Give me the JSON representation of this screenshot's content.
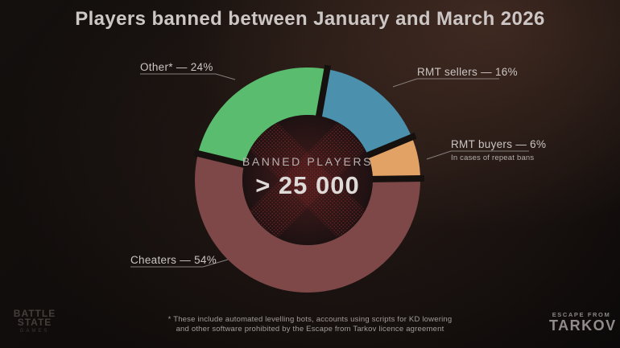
{
  "title": "Players banned between January and March 2026",
  "chart_data": {
    "type": "pie",
    "variant": "donut",
    "title": "Players banned between January and March 2026",
    "start_angle_deg": 10,
    "direction": "clockwise",
    "legend_position": "callouts",
    "center": {
      "label": "BANNED PLAYERS",
      "value": "> 25 000"
    },
    "segments": [
      {
        "label": "RMT sellers",
        "value": 16,
        "color": "#4b90ad"
      },
      {
        "label": "RMT buyers",
        "value": 6,
        "color": "#e2a266",
        "note": "In cases of repeat bans"
      },
      {
        "label": "Cheaters",
        "value": 54,
        "color": "#7d4847"
      },
      {
        "label": "Other*",
        "value": 24,
        "color": "#5abc6e"
      }
    ]
  },
  "footnote": {
    "line1": "* These include automated levelling bots, accounts using scripts for KD lowering",
    "line2": "and other software prohibited by the Escape from Tarkov licence agreement"
  },
  "logos": {
    "battlestate": {
      "line1": "BATTLE",
      "line2": "STATE",
      "line3": "GAMES"
    },
    "tarkov": {
      "line1": "ESCAPE FROM",
      "line2": "TARKOV"
    }
  },
  "colors": {
    "background": "#0e0b0a",
    "title_text": "#ccc6c4",
    "center_emblem_red": "#6e2423",
    "leader_line": "#96908d"
  }
}
